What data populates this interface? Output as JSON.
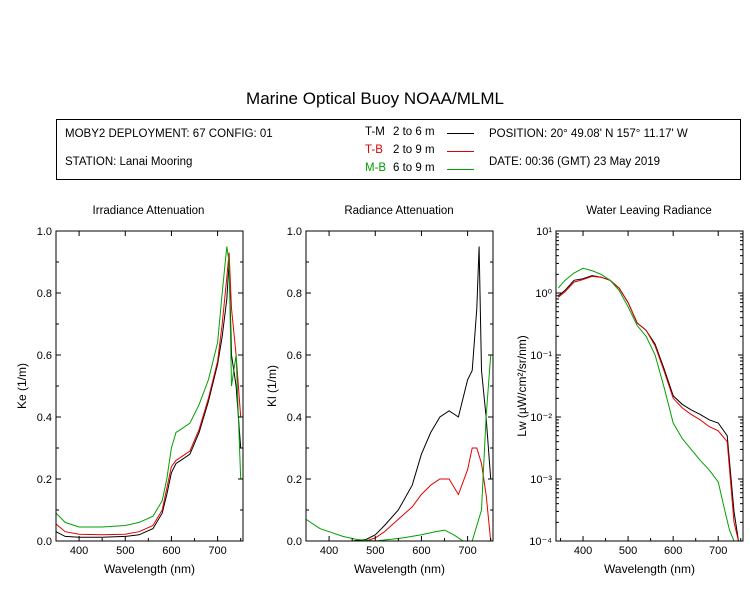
{
  "title": "Marine Optical Buoy NOAA/MLML",
  "info": {
    "deployment": "MOBY2 DEPLOYMENT: 67 CONFIG: 01",
    "station": "STATION: Lanai Mooring",
    "position": "POSITION: 20° 49.08' N   157° 11.17' W",
    "date": "DATE: 00:36 (GMT) 23 May 2019"
  },
  "legend": [
    {
      "code": "T-M",
      "range": "2 to 6  m",
      "color": "#000000"
    },
    {
      "code": "T-B",
      "range": "2 to 9  m",
      "color": "#e00000"
    },
    {
      "code": "M-B",
      "range": "6 to 9  m",
      "color": "#00a000"
    }
  ],
  "colors": {
    "T-M": "#000000",
    "T-B": "#e00000",
    "M-B": "#00a000"
  },
  "chart_data": [
    {
      "type": "line",
      "title": "Irradiance Attenuation",
      "xlabel": "Wavelength (nm)",
      "ylabel": "Ke  (1/m)",
      "xlim": [
        350,
        755
      ],
      "ylim": [
        0,
        1
      ],
      "xticks": [
        400,
        500,
        600,
        700
      ],
      "xtick_labels": [
        "400",
        "500",
        "600",
        "700"
      ],
      "yticks": [
        0,
        0.2,
        0.4,
        0.6,
        0.8,
        1.0
      ],
      "ytick_labels": [
        "0.0",
        "0.2",
        "0.4",
        "0.6",
        "0.8",
        "1.0"
      ],
      "yscale": "linear",
      "series": [
        {
          "name": "T-M",
          "x": [
            350,
            370,
            400,
            450,
            500,
            530,
            560,
            580,
            590,
            600,
            610,
            620,
            640,
            660,
            680,
            700,
            710,
            720,
            725,
            730,
            740,
            750
          ],
          "y": [
            0.03,
            0.015,
            0.012,
            0.012,
            0.015,
            0.02,
            0.04,
            0.09,
            0.15,
            0.22,
            0.25,
            0.26,
            0.28,
            0.35,
            0.45,
            0.57,
            0.66,
            0.78,
            0.9,
            0.6,
            0.5,
            0.3
          ]
        },
        {
          "name": "T-B",
          "x": [
            350,
            370,
            400,
            450,
            500,
            530,
            560,
            580,
            590,
            600,
            610,
            620,
            640,
            660,
            680,
            700,
            710,
            720,
            725,
            730,
            740,
            750
          ],
          "y": [
            0.055,
            0.03,
            0.022,
            0.02,
            0.022,
            0.03,
            0.05,
            0.1,
            0.17,
            0.24,
            0.26,
            0.27,
            0.29,
            0.36,
            0.46,
            0.58,
            0.7,
            0.85,
            0.93,
            0.75,
            0.6,
            0.4
          ]
        },
        {
          "name": "M-B",
          "x": [
            350,
            370,
            400,
            450,
            500,
            530,
            560,
            580,
            590,
            600,
            610,
            620,
            640,
            660,
            680,
            700,
            710,
            720,
            725,
            730,
            740,
            750
          ],
          "y": [
            0.09,
            0.06,
            0.045,
            0.045,
            0.05,
            0.06,
            0.08,
            0.13,
            0.2,
            0.3,
            0.35,
            0.36,
            0.38,
            0.44,
            0.52,
            0.64,
            0.8,
            0.95,
            0.9,
            0.5,
            0.6,
            0.2
          ]
        }
      ]
    },
    {
      "type": "line",
      "title": "Radiance Attenuation",
      "xlabel": "Wavelength (nm)",
      "ylabel": "Kl  (1/m)",
      "xlim": [
        350,
        755
      ],
      "ylim": [
        0,
        1
      ],
      "xticks": [
        400,
        500,
        600,
        700
      ],
      "xtick_labels": [
        "400",
        "500",
        "600",
        "700"
      ],
      "yticks": [
        0,
        0.2,
        0.4,
        0.6,
        0.8,
        1.0
      ],
      "ytick_labels": [
        "0.0",
        "0.2",
        "0.4",
        "0.6",
        "0.8",
        "1.0"
      ],
      "yscale": "linear",
      "series": [
        {
          "name": "T-M",
          "x": [
            350,
            400,
            450,
            480,
            500,
            520,
            550,
            580,
            600,
            620,
            640,
            660,
            680,
            700,
            710,
            720,
            725,
            730,
            740,
            750
          ],
          "y": [
            0.0,
            0.0,
            0.0,
            0.005,
            0.02,
            0.05,
            0.1,
            0.18,
            0.28,
            0.35,
            0.4,
            0.42,
            0.4,
            0.52,
            0.55,
            0.75,
            0.95,
            0.55,
            0.4,
            0.2
          ]
        },
        {
          "name": "T-B",
          "x": [
            350,
            400,
            450,
            480,
            500,
            520,
            550,
            580,
            600,
            620,
            640,
            660,
            680,
            700,
            710,
            720,
            730,
            740,
            750
          ],
          "y": [
            0.0,
            0.0,
            0.0,
            0.0,
            0.01,
            0.03,
            0.07,
            0.11,
            0.15,
            0.18,
            0.2,
            0.2,
            0.15,
            0.23,
            0.3,
            0.3,
            0.25,
            0.15,
            0.0
          ]
        },
        {
          "name": "M-B",
          "x": [
            350,
            380,
            400,
            430,
            460,
            500,
            530,
            560,
            600,
            630,
            650,
            670,
            690,
            710,
            730,
            740,
            750
          ],
          "y": [
            0.07,
            0.04,
            0.03,
            0.015,
            0.005,
            0.0,
            0.005,
            0.01,
            0.02,
            0.03,
            0.035,
            0.02,
            0.0,
            0.0,
            0.1,
            0.4,
            0.6
          ]
        }
      ]
    },
    {
      "type": "line",
      "title": "Water Leaving Radiance",
      "xlabel": "Wavelength (nm)",
      "ylabel": "Lw  (µW/cm²/sr/nm)",
      "xlim": [
        340,
        755
      ],
      "ylim": [
        0.0001,
        10
      ],
      "xticks": [
        400,
        500,
        600,
        700
      ],
      "xtick_labels": [
        "400",
        "500",
        "600",
        "700"
      ],
      "yticks": [
        0.0001,
        0.001,
        0.01,
        0.1,
        1,
        10
      ],
      "ytick_labels": [
        "10⁻⁴",
        "10⁻³",
        "10⁻²",
        "10⁻¹",
        "10⁰",
        "10¹"
      ],
      "yscale": "log",
      "series": [
        {
          "name": "T-M",
          "x": [
            345,
            360,
            380,
            400,
            420,
            440,
            460,
            480,
            500,
            520,
            540,
            560,
            580,
            600,
            620,
            640,
            660,
            680,
            700,
            720,
            735,
            745
          ],
          "y": [
            0.9,
            1.1,
            1.6,
            1.7,
            1.9,
            1.8,
            1.6,
            1.2,
            0.7,
            0.33,
            0.25,
            0.15,
            0.06,
            0.022,
            0.016,
            0.013,
            0.011,
            0.009,
            0.008,
            0.005,
            0.0003,
            0.0001
          ]
        },
        {
          "name": "T-B",
          "x": [
            345,
            360,
            380,
            400,
            420,
            440,
            460,
            480,
            500,
            520,
            540,
            560,
            580,
            600,
            620,
            640,
            660,
            680,
            700,
            720,
            735,
            745
          ],
          "y": [
            0.85,
            1.05,
            1.5,
            1.65,
            1.85,
            1.8,
            1.6,
            1.2,
            0.7,
            0.33,
            0.25,
            0.14,
            0.055,
            0.02,
            0.014,
            0.011,
            0.009,
            0.007,
            0.006,
            0.004,
            0.0002,
            0.0001
          ]
        },
        {
          "name": "M-B",
          "x": [
            345,
            360,
            380,
            400,
            420,
            440,
            460,
            480,
            500,
            520,
            540,
            560,
            580,
            600,
            620,
            640,
            660,
            680,
            700,
            715,
            725,
            735
          ],
          "y": [
            1.2,
            1.6,
            2.1,
            2.5,
            2.3,
            2.0,
            1.6,
            1.1,
            0.6,
            0.3,
            0.2,
            0.1,
            0.03,
            0.008,
            0.0045,
            0.003,
            0.002,
            0.0014,
            0.0009,
            0.0003,
            0.00015,
            0.0001
          ]
        }
      ]
    }
  ]
}
